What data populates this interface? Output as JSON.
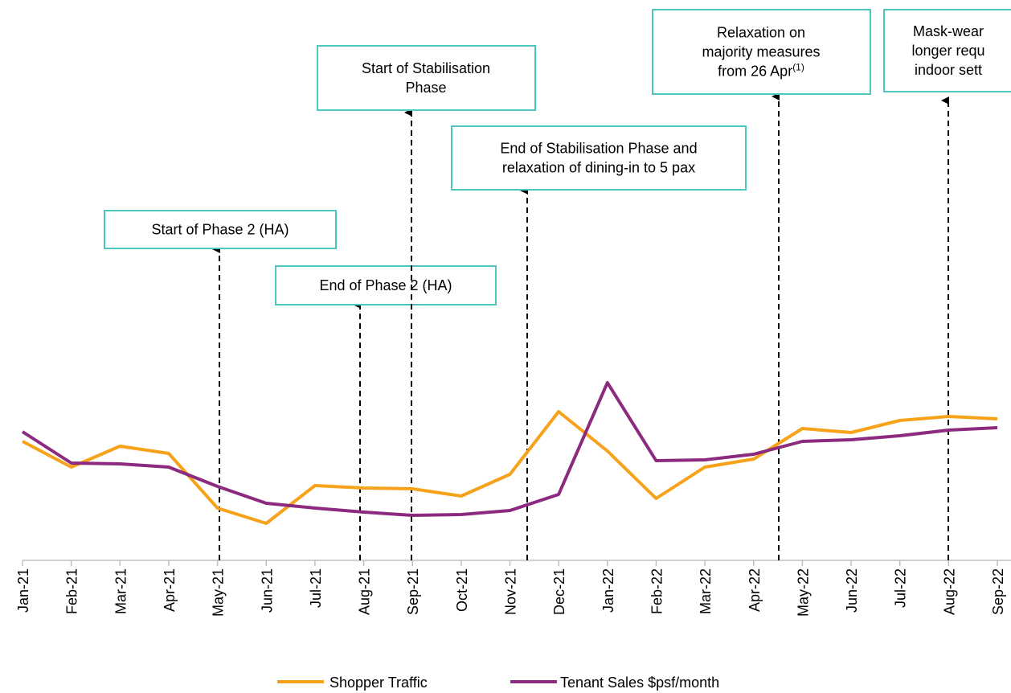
{
  "chart_data": {
    "type": "line",
    "categories": [
      "Jan-21",
      "Feb-21",
      "Mar-21",
      "Apr-21",
      "May-21",
      "Jun-21",
      "Jul-21",
      "Aug-21",
      "Sep-21",
      "Oct-21",
      "Nov-21",
      "Dec-21",
      "Jan-22",
      "Feb-22",
      "Mar-22",
      "Apr-22",
      "May-22",
      "Jun-22",
      "Jul-22",
      "Aug-22",
      "Sep-22"
    ],
    "series": [
      {
        "name": "Shopper Traffic",
        "color": "#f7a21b",
        "values": [
          29.6,
          23.2,
          28.4,
          26.6,
          13,
          9.2,
          18.6,
          18,
          17.8,
          16,
          21.4,
          37,
          27.2,
          15.4,
          23.2,
          25.2,
          32.8,
          31.8,
          34.8,
          35.8,
          35.2
        ]
      },
      {
        "name": "Tenant Sales $psf/month",
        "color": "#8b2a7e",
        "values": [
          32,
          24.2,
          24,
          23.2,
          18.4,
          14.2,
          13,
          12,
          11.2,
          11.4,
          12.4,
          16.4,
          44.2,
          24.8,
          25,
          26.4,
          29.6,
          30,
          31,
          32.4,
          33
        ]
      }
    ],
    "ylim": [
      0,
      100
    ],
    "legend": "bottom",
    "annotations": [
      {
        "lines": [
          "Start of Phase 2 (HA)"
        ]
      },
      {
        "lines": [
          "End of Phase 2 (HA)"
        ]
      },
      {
        "lines": [
          "Start of Stabilisation",
          "Phase"
        ]
      },
      {
        "lines": [
          "End of Stabilisation Phase and",
          "relaxation of dining-in to 5 pax"
        ]
      },
      {
        "lines": [
          "Relaxation on",
          "majority measures",
          "from 26 Apr"
        ],
        "note": "(1)"
      },
      {
        "lines": [
          "Mask-wear",
          "longer requ",
          "indoor sett"
        ]
      }
    ]
  }
}
